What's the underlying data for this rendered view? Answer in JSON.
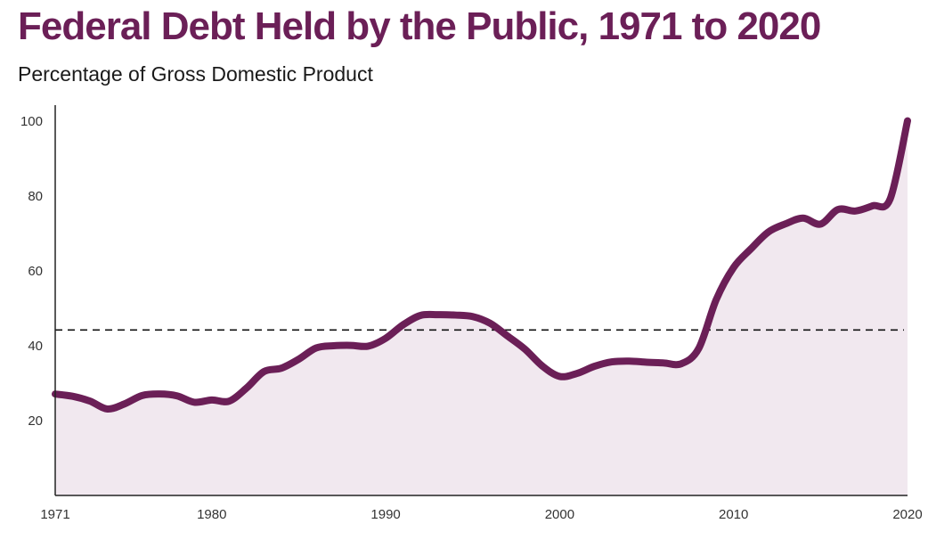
{
  "colors": {
    "line": "#6b1f57",
    "fill": "#f1e8ef",
    "axis": "#222222",
    "reference_line": "#111111",
    "title": "#6b1f57"
  },
  "chart_data": {
    "type": "area",
    "title": "Federal Debt Held by the Public, 1971 to 2020",
    "subtitle": "Percentage of Gross Domestic Product",
    "xlabel": "",
    "ylabel": "",
    "xlim": [
      1971,
      2020
    ],
    "ylim": [
      0,
      100
    ],
    "x_ticks": [
      "1971",
      "1980",
      "1990",
      "2000",
      "2010",
      "2020"
    ],
    "y_ticks": [
      "20",
      "40",
      "60",
      "80",
      "100"
    ],
    "grid": false,
    "reference_line": {
      "y": 44.2,
      "style": "dashed"
    },
    "series": [
      {
        "x": [
          1971,
          1972,
          1973,
          1974,
          1975,
          1976,
          1977,
          1978,
          1979,
          1980,
          1981,
          1982,
          1983,
          1984,
          1985,
          1986,
          1987,
          1988,
          1989,
          1990,
          1991,
          1992,
          1993,
          1994,
          1995,
          1996,
          1997,
          1998,
          1999,
          2000,
          2001,
          2002,
          2003,
          2004,
          2005,
          2006,
          2007,
          2008,
          2009,
          2010,
          2011,
          2012,
          2013,
          2014,
          2015,
          2016,
          2017,
          2018,
          2019,
          2020
        ],
        "y": [
          27.1,
          26.5,
          25.2,
          23.1,
          24.5,
          26.7,
          27.1,
          26.6,
          24.9,
          25.5,
          25.2,
          28.7,
          33.1,
          34.0,
          36.4,
          39.4,
          40.0,
          40.1,
          39.9,
          42.0,
          45.6,
          48.1,
          48.3,
          48.2,
          47.8,
          46.0,
          42.6,
          39.1,
          34.6,
          31.8,
          32.6,
          34.5,
          35.7,
          35.9,
          35.6,
          35.4,
          35.2,
          39.3,
          52.3,
          60.9,
          65.9,
          70.4,
          72.6,
          74.1,
          72.5,
          76.4,
          76.0,
          77.4,
          79.2,
          100.1
        ]
      }
    ]
  }
}
